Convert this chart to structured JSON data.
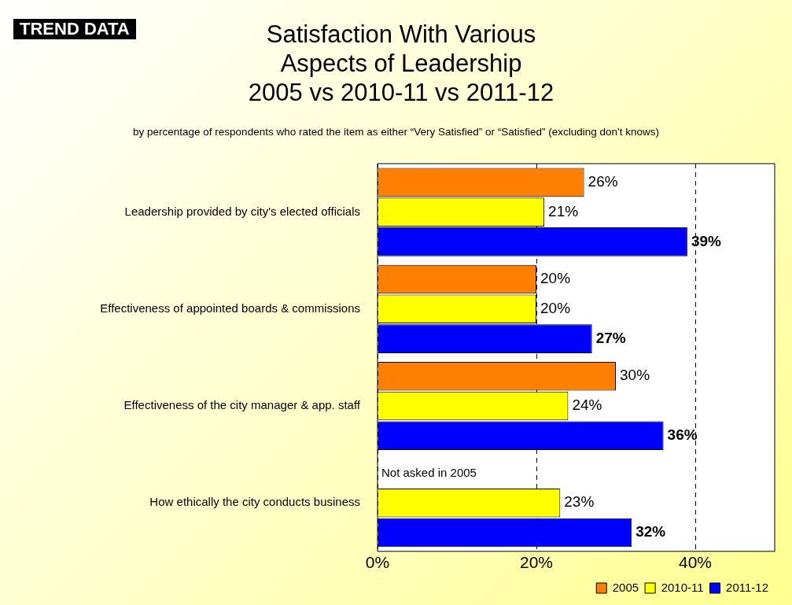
{
  "chart_data": {
    "type": "bar",
    "orientation": "horizontal",
    "title": "Satisfaction With Various\nAspects of Leadership\n2005 vs 2010-11 vs 2011-12",
    "subtitle": "by percentage of respondents who rated the item as either “Very Satisfied” or “Satisfied” (excluding don't knows)",
    "categories": [
      "Leadership provided by city's elected officials",
      "Effectiveness of appointed boards & commissions",
      "Effectiveness of the city manager & app. staff",
      "How ethically the city conducts business"
    ],
    "series": [
      {
        "name": "2005",
        "color": "#ff8000",
        "values": [
          26,
          20,
          30,
          null
        ],
        "value_labels": [
          "26%",
          "20%",
          "30%",
          null
        ]
      },
      {
        "name": "2010-11",
        "color": "#ffff00",
        "values": [
          21,
          20,
          24,
          23
        ],
        "value_labels": [
          "21%",
          "20%",
          "24%",
          "23%"
        ]
      },
      {
        "name": "2011-12",
        "color": "#0000ff",
        "values": [
          39,
          27,
          36,
          32
        ],
        "value_labels": [
          "39%",
          "27%",
          "36%",
          "32%"
        ]
      }
    ],
    "xlim": [
      0,
      50
    ],
    "xticks": [
      {
        "value": 0,
        "label": "0%"
      },
      {
        "value": 20,
        "label": "20%"
      },
      {
        "value": 40,
        "label": "40%"
      }
    ],
    "grid": "x",
    "legend": "bottom right",
    "annotations": [
      "TREND DATA",
      {
        "text": "Not asked in 2005",
        "x": 0,
        "y": "How ethically the city conducts business"
      }
    ]
  }
}
